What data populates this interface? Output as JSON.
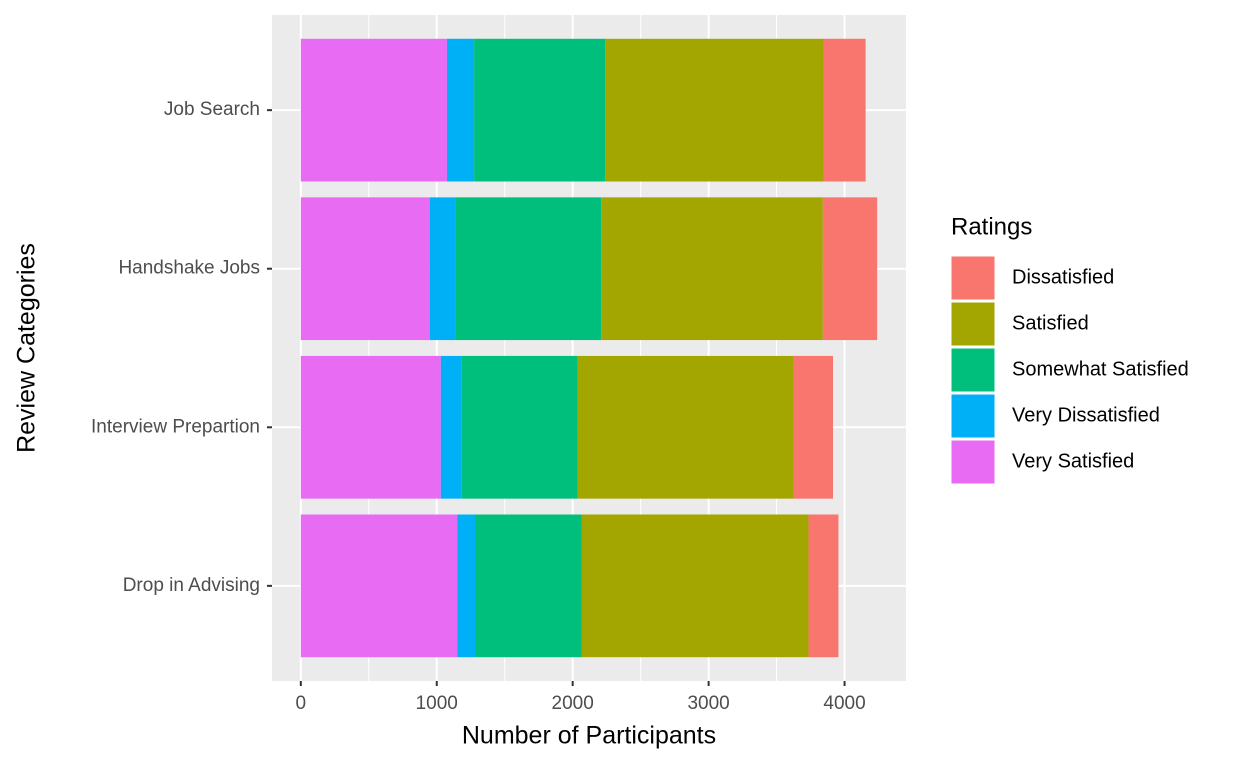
{
  "chart_data": {
    "type": "bar",
    "orientation": "horizontal",
    "stacked": true,
    "xlabel": "Number of Participants",
    "ylabel": "Review Categories",
    "legend_title": "Ratings",
    "legend_position": "right",
    "categories": [
      "Job Search",
      "Handshake Jobs",
      "Interview Prepartion",
      "Drop in Advising"
    ],
    "series": [
      {
        "name": "Dissatisfied",
        "color": "#F8766D",
        "values": [
          310,
          400,
          290,
          220
        ]
      },
      {
        "name": "Satisfied",
        "color": "#A3A500",
        "values": [
          1605,
          1630,
          1590,
          1670
        ]
      },
      {
        "name": "Somewhat Satisfied",
        "color": "#00BF7D",
        "values": [
          965,
          1075,
          855,
          780
        ]
      },
      {
        "name": "Very Dissatisfied",
        "color": "#00B0F6",
        "values": [
          200,
          185,
          150,
          135
        ]
      },
      {
        "name": "Very Satisfied",
        "color": "#E76BF3",
        "values": [
          1075,
          950,
          1030,
          1150
        ]
      }
    ],
    "xlim": [
      -212,
      4452
    ],
    "xticks": [
      0,
      1000,
      2000,
      3000,
      4000
    ],
    "grid": true
  }
}
